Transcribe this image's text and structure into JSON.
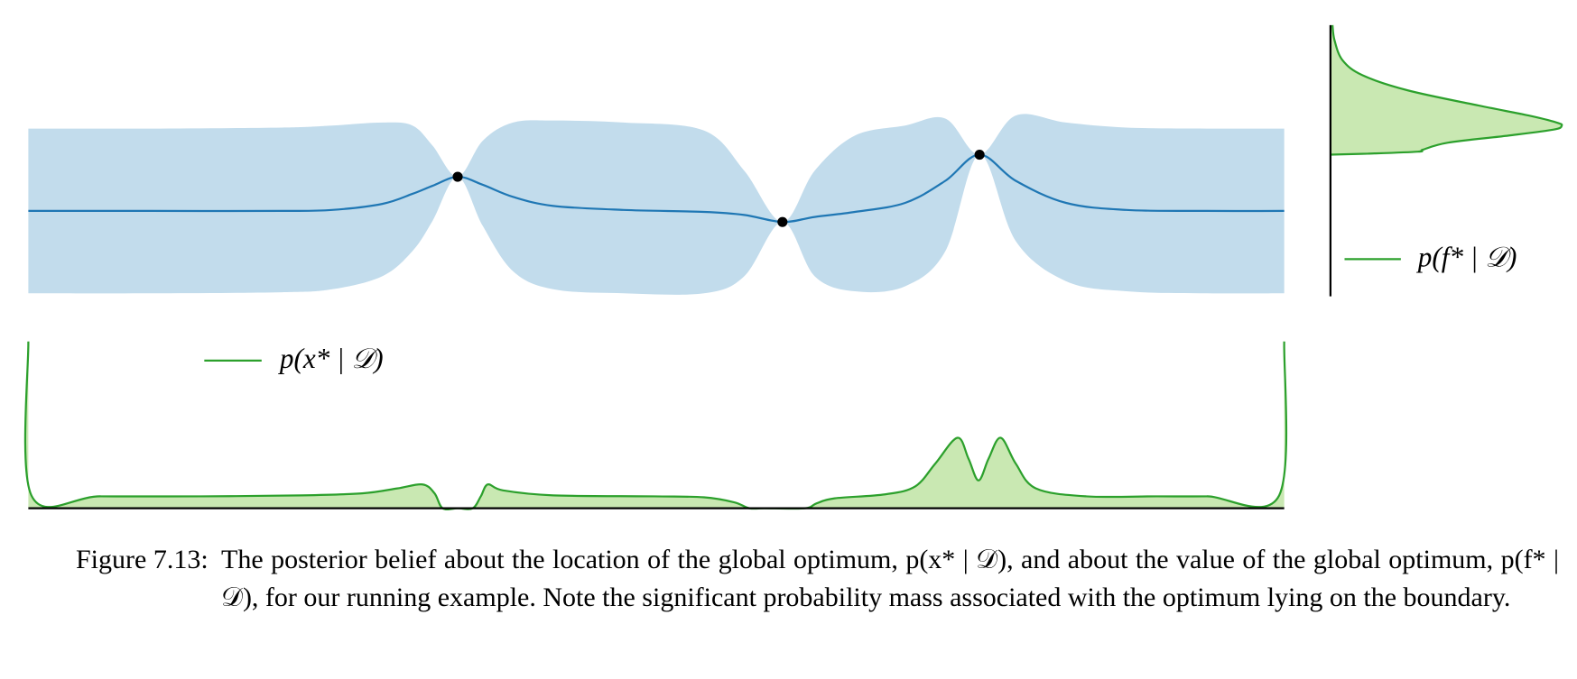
{
  "chart_data": [
    {
      "type": "gp_posterior",
      "x": [
        0,
        122,
        252,
        302,
        352,
        382,
        402,
        427,
        452,
        482,
        522,
        592,
        672,
        712,
        750,
        782,
        822,
        872,
        912,
        946,
        982,
        1032,
        1092,
        1172,
        1249
      ],
      "mean": [
        0,
        0,
        0,
        1,
        7,
        17,
        25,
        34,
        26,
        14,
        5,
        1,
        -1,
        -4,
        -11,
        -6,
        -1,
        8,
        30,
        56,
        30,
        8,
        1,
        0,
        0
      ],
      "upper": [
        82,
        82,
        83,
        85,
        88,
        85,
        65,
        34,
        70,
        88,
        90,
        88,
        80,
        40,
        -11,
        40,
        75,
        85,
        92,
        56,
        95,
        88,
        83,
        82,
        82
      ],
      "lower": [
        -82,
        -82,
        -81,
        -78,
        -65,
        -40,
        -10,
        34,
        -15,
        -60,
        -78,
        -82,
        -82,
        -65,
        -11,
        -65,
        -80,
        -75,
        -40,
        56,
        -30,
        -70,
        -80,
        -82,
        -82
      ],
      "observations": {
        "x": [
          427,
          750,
          946
        ],
        "y": [
          34,
          -11,
          56
        ]
      },
      "xlim": [
        0,
        1249
      ],
      "ylim": [
        -90,
        110
      ],
      "mean_color": "#1f77b4",
      "band_color": "#c2dcec",
      "observation_color": "#000000"
    },
    {
      "type": "density",
      "x": [
        0,
        3,
        72,
        172,
        272,
        332,
        367,
        392,
        404,
        412,
        427,
        442,
        450,
        457,
        472,
        522,
        622,
        672,
        702,
        717,
        732,
        772,
        784,
        802,
        852,
        882,
        902,
        924,
        935,
        945,
        955,
        967,
        982,
        1002,
        1052,
        1122,
        1172,
        1244,
        1249
      ],
      "series": [
        {
          "name": "p(x* | 𝒟)",
          "color": "#2ca02c",
          "values": [
            168,
            13,
            12,
            12,
            13,
            15,
            20,
            24,
            15,
            0,
            0,
            0,
            12,
            24,
            18,
            13,
            12,
            11,
            6,
            0,
            0,
            0,
            5,
            10,
            14,
            22,
            45,
            71,
            50,
            28,
            50,
            71,
            45,
            20,
            12,
            12,
            12,
            13,
            168
          ]
        }
      ],
      "fill": "#c9e8b2",
      "xlim": [
        0,
        1249
      ],
      "ylim": [
        0,
        170
      ]
    },
    {
      "type": "density_horizontal",
      "f": [
        185,
        170,
        150,
        135,
        120,
        105,
        95,
        88,
        85,
        81,
        75,
        68,
        61,
        59,
        57,
        56
      ],
      "series": [
        {
          "name": "p(f* | 𝒟)",
          "color": "#2ca02c",
          "values": [
            2,
            4,
            12,
            32,
            77,
            147,
            197,
            225,
            230,
            222,
            177,
            117,
            92,
            87,
            37,
            0
          ]
        }
      ],
      "fill": "#c9e8b2",
      "xlim": [
        0,
        240
      ],
      "ylim": [
        -85,
        185
      ]
    }
  ],
  "caption": {
    "label": "Figure 7.13:",
    "text": "The posterior belief about the location of the global optimum, p(x* | 𝒟), and about the value of the global optimum, p(f* | 𝒟), for our running example. Note the significant probability mass associated with the optimum lying on the boundary."
  }
}
